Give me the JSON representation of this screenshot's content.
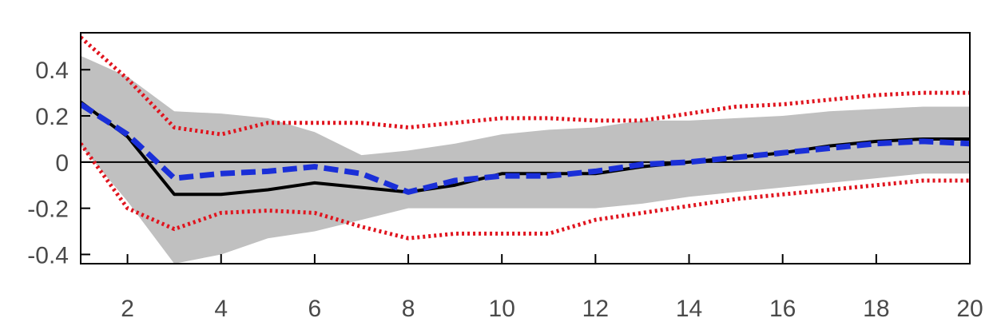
{
  "chart_data": {
    "type": "line",
    "title": "",
    "xlabel": "",
    "ylabel": "",
    "xlim": [
      1,
      20
    ],
    "ylim": [
      -0.44,
      0.56
    ],
    "x_ticks": [
      2,
      4,
      6,
      8,
      10,
      12,
      14,
      16,
      18,
      20
    ],
    "y_ticks": [
      0.4,
      0.2,
      0,
      -0.2,
      -0.4
    ],
    "x_tick_labels": [
      "2",
      "4",
      "6",
      "8",
      "10",
      "12",
      "14",
      "16",
      "18",
      "20"
    ],
    "y_tick_labels": [
      "0.4",
      "0.2",
      "0",
      "-0.2",
      "-0.4"
    ],
    "grid": false,
    "zero_line": true,
    "x": [
      1,
      2,
      3,
      4,
      5,
      6,
      7,
      8,
      9,
      10,
      11,
      12,
      13,
      14,
      15,
      16,
      17,
      18,
      19,
      20
    ],
    "band": {
      "color": "#c0c0c0",
      "upper": [
        0.46,
        0.37,
        0.22,
        0.21,
        0.19,
        0.13,
        0.03,
        0.05,
        0.08,
        0.12,
        0.14,
        0.15,
        0.18,
        0.18,
        0.19,
        0.2,
        0.22,
        0.23,
        0.24,
        0.24
      ],
      "lower": [
        0.07,
        -0.17,
        -0.44,
        -0.4,
        -0.33,
        -0.3,
        -0.25,
        -0.2,
        -0.2,
        -0.2,
        -0.2,
        -0.2,
        -0.18,
        -0.15,
        -0.13,
        -0.11,
        -0.09,
        -0.07,
        -0.05,
        -0.05
      ]
    },
    "series": [
      {
        "style": "solid",
        "color": "#000000",
        "values": [
          0.26,
          0.11,
          -0.14,
          -0.14,
          -0.12,
          -0.09,
          -0.11,
          -0.13,
          -0.1,
          -0.05,
          -0.05,
          -0.05,
          -0.02,
          0.0,
          0.02,
          0.04,
          0.07,
          0.09,
          0.1,
          0.1
        ]
      },
      {
        "style": "dashed",
        "color": "#1a2fd8",
        "values": [
          0.25,
          0.12,
          -0.07,
          -0.05,
          -0.04,
          -0.02,
          -0.05,
          -0.13,
          -0.08,
          -0.06,
          -0.06,
          -0.04,
          -0.01,
          0.0,
          0.02,
          0.04,
          0.06,
          0.08,
          0.09,
          0.08
        ]
      },
      {
        "style": "dotted",
        "color": "#e0141e",
        "values": [
          0.54,
          0.36,
          0.15,
          0.12,
          0.17,
          0.17,
          0.17,
          0.15,
          0.17,
          0.19,
          0.19,
          0.18,
          0.18,
          0.21,
          0.24,
          0.25,
          0.27,
          0.29,
          0.3,
          0.3
        ]
      },
      {
        "style": "dotted",
        "color": "#e0141e",
        "values": [
          0.08,
          -0.2,
          -0.29,
          -0.22,
          -0.21,
          -0.22,
          -0.28,
          -0.33,
          -0.31,
          -0.31,
          -0.31,
          -0.25,
          -0.22,
          -0.19,
          -0.16,
          -0.14,
          -0.12,
          -0.1,
          -0.08,
          -0.08
        ]
      }
    ]
  }
}
